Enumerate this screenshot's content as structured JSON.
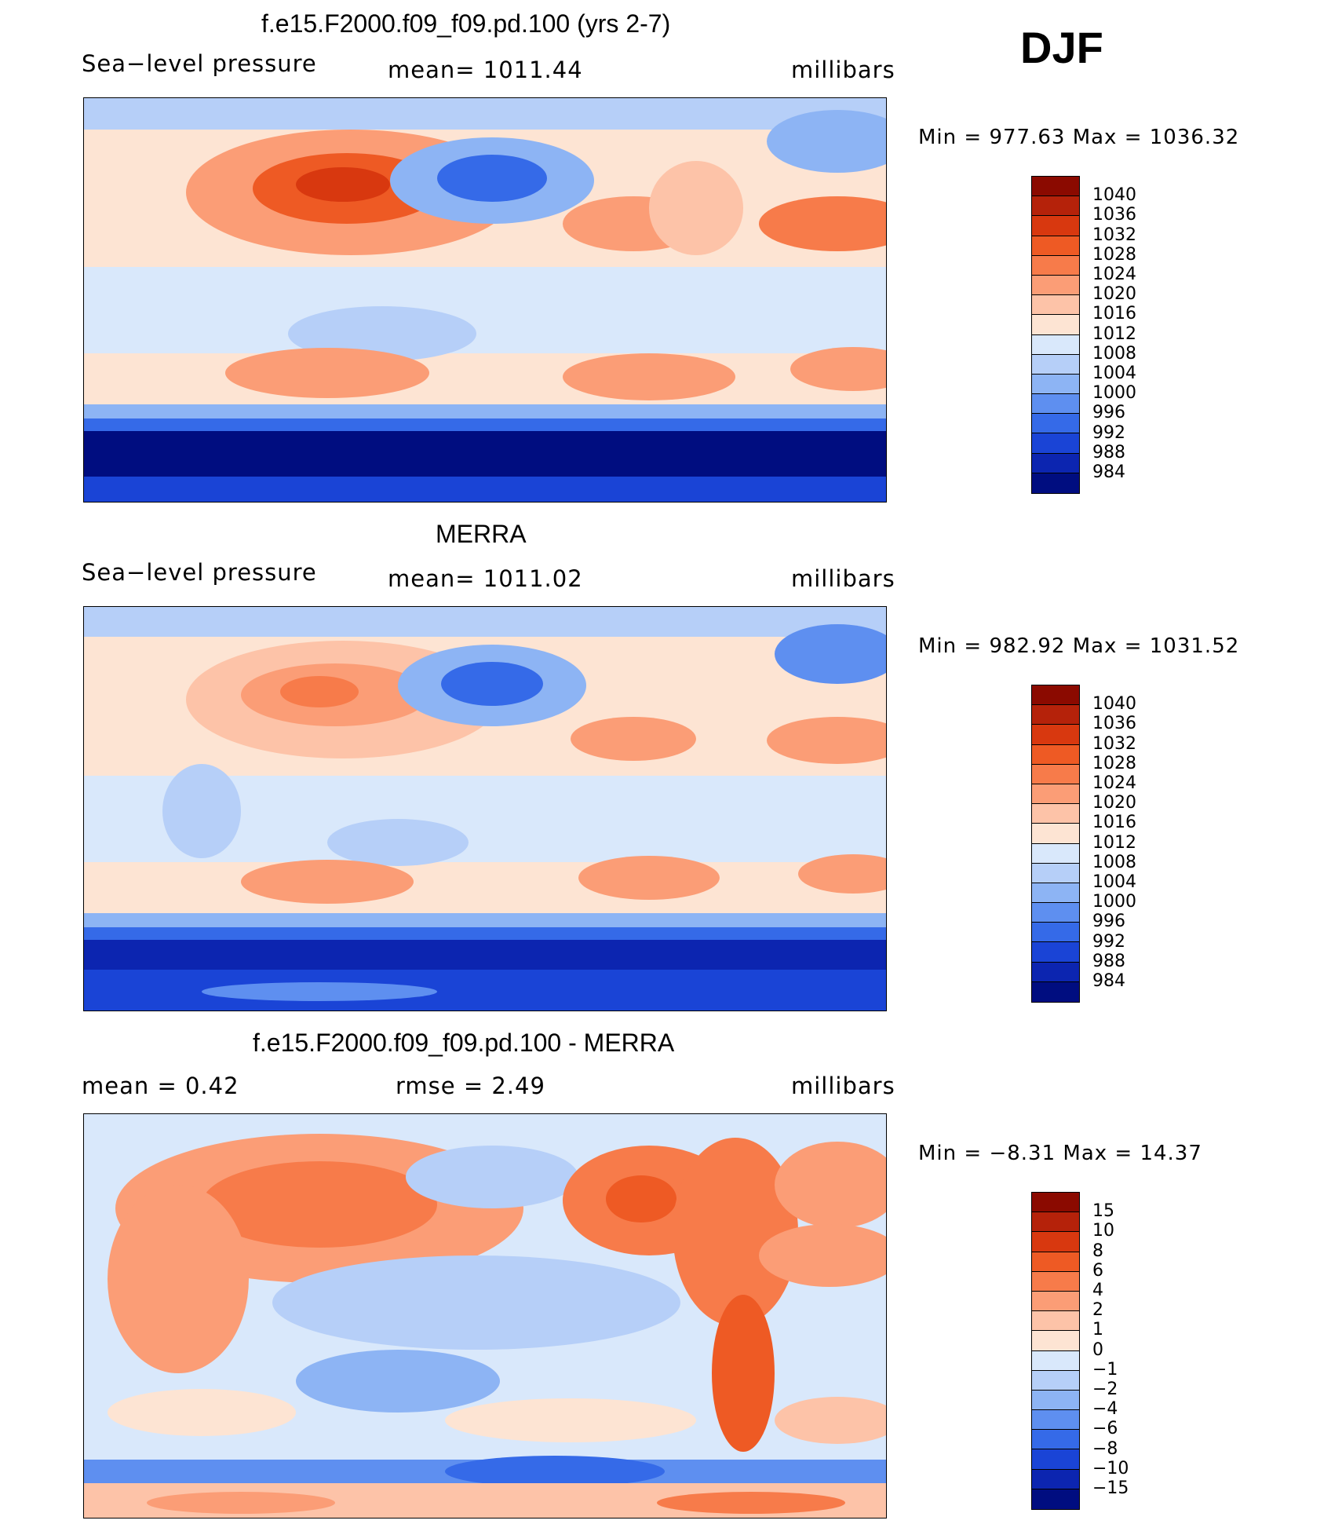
{
  "season": "DJF",
  "panels": [
    {
      "title": "f.e15.F2000.f09_f09.pd.100 (yrs 2-7)",
      "left_label": "Sea−level pressure",
      "center_label": "mean=  1011.44",
      "units": "millibars",
      "minmax": "Min  =  977.63  Max  =  1036.32",
      "colorbar": {
        "labels": [
          "1040",
          "1036",
          "1032",
          "1028",
          "1024",
          "1020",
          "1016",
          "1012",
          "1008",
          "1004",
          "1000",
          "996",
          "992",
          "988",
          "984"
        ],
        "colors": [
          "#8b0a00",
          "#b5220a",
          "#d8380f",
          "#ee5a24",
          "#f77b4a",
          "#fb9d76",
          "#fdc3a8",
          "#fde4d3",
          "#d9e8fb",
          "#b6cff8",
          "#8db4f4",
          "#5e8ff0",
          "#356ae8",
          "#1a44d6",
          "#0c25b0",
          "#000d80"
        ]
      }
    },
    {
      "title": "MERRA",
      "left_label": "Sea−level pressure",
      "center_label": "mean=  1011.02",
      "units": "millibars",
      "minmax": "Min  =  982.92  Max  =  1031.52",
      "colorbar": {
        "labels": [
          "1040",
          "1036",
          "1032",
          "1028",
          "1024",
          "1020",
          "1016",
          "1012",
          "1008",
          "1004",
          "1000",
          "996",
          "992",
          "988",
          "984"
        ],
        "colors": [
          "#8b0a00",
          "#b5220a",
          "#d8380f",
          "#ee5a24",
          "#f77b4a",
          "#fb9d76",
          "#fdc3a8",
          "#fde4d3",
          "#d9e8fb",
          "#b6cff8",
          "#8db4f4",
          "#5e8ff0",
          "#356ae8",
          "#1a44d6",
          "#0c25b0",
          "#000d80"
        ]
      }
    },
    {
      "title": "f.e15.F2000.f09_f09.pd.100 - MERRA",
      "left_label": "mean  =     0.42",
      "center_label": "rmse  =     2.49",
      "units": "millibars",
      "minmax": "Min  =   −8.31  Max  =    14.37",
      "colorbar": {
        "labels": [
          "15",
          "10",
          "8",
          "6",
          "4",
          "2",
          "1",
          "0",
          "−1",
          "−2",
          "−4",
          "−6",
          "−8",
          "−10",
          "−15"
        ],
        "colors": [
          "#8b0a00",
          "#b5220a",
          "#d8380f",
          "#ee5a24",
          "#f77b4a",
          "#fb9d76",
          "#fdc3a8",
          "#fde4d3",
          "#d9e8fb",
          "#b6cff8",
          "#8db4f4",
          "#5e8ff0",
          "#356ae8",
          "#1a44d6",
          "#0c25b0",
          "#000d80"
        ]
      }
    }
  ]
}
